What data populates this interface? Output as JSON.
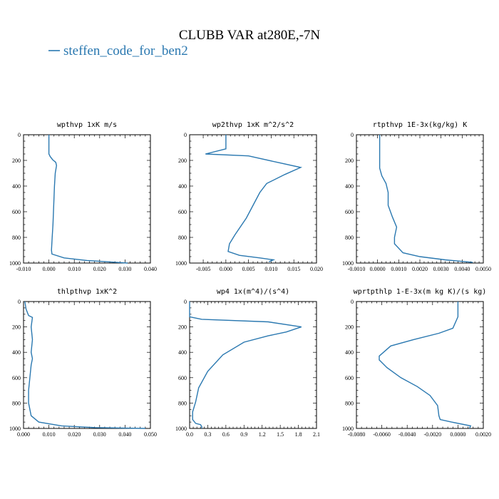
{
  "figure": {
    "title": "CLUBB VAR at280E,-7N",
    "legend_label": "steffen_code_for_ben2",
    "line_color": "#2a78b0"
  },
  "chart_data": [
    {
      "type": "line",
      "title": "wpthvp   1xK m/s",
      "xlim": [
        -0.01,
        0.04
      ],
      "ylim": [
        1000,
        0
      ],
      "y_inverted": true,
      "xticks": [
        "-0.010",
        "0.000",
        "0.010",
        "0.020",
        "0.030",
        "0.040"
      ],
      "yticks": [
        "0",
        "200",
        "400",
        "600",
        "800",
        "1000"
      ],
      "series": [
        {
          "x": [
            0.0,
            0.0,
            0.0,
            0.0005,
            0.0015,
            0.0027,
            0.003,
            0.0025,
            0.0022,
            0.002,
            0.0018,
            0.0016,
            0.0013,
            0.001,
            0.0012,
            0.006,
            0.015,
            0.025,
            0.031
          ],
          "y": [
            0,
            100,
            150,
            170,
            195,
            215,
            240,
            300,
            400,
            500,
            600,
            700,
            800,
            900,
            930,
            960,
            980,
            993,
            1000
          ]
        }
      ]
    },
    {
      "type": "line",
      "title": "wp2thvp   1xK m^2/s^2",
      "xlim": [
        -0.008,
        0.02
      ],
      "ylim": [
        1000,
        0
      ],
      "y_inverted": true,
      "xticks": [
        "-0.005",
        "0.000",
        "0.005",
        "0.010",
        "0.015",
        "0.020"
      ],
      "yticks": [
        "0",
        "200",
        "400",
        "600",
        "800",
        "1000"
      ],
      "series": [
        {
          "x": [
            0.0,
            0.0,
            -0.0045,
            0.005,
            0.012,
            0.0165,
            0.013,
            0.009,
            0.0075,
            0.006,
            0.0045,
            0.002,
            0.0008,
            0.0005,
            0.003,
            0.0075,
            0.0105,
            0.0095
          ],
          "y": [
            0,
            110,
            150,
            165,
            220,
            255,
            310,
            380,
            450,
            550,
            650,
            780,
            850,
            910,
            940,
            960,
            975,
            990
          ]
        }
      ]
    },
    {
      "type": "line",
      "title": "rtpthvp   1E-3x(kg/kg) K",
      "xlim": [
        -0.001,
        0.005
      ],
      "ylim": [
        1000,
        0
      ],
      "y_inverted": true,
      "xticks": [
        "-0.0010",
        "0.0000",
        "0.0010",
        "0.0020",
        "0.0030",
        "0.0040",
        "0.0050"
      ],
      "yticks": [
        "0",
        "200",
        "400",
        "600",
        "800",
        "1000"
      ],
      "series": [
        {
          "x": [
            0.0001,
            0.0001,
            0.0001,
            0.0001,
            0.0002,
            0.0004,
            0.0005,
            0.0005,
            0.0007,
            0.0009,
            0.0008,
            0.0008,
            0.0012,
            0.002,
            0.0032,
            0.0045
          ],
          "y": [
            0,
            100,
            200,
            260,
            320,
            380,
            450,
            550,
            640,
            720,
            800,
            850,
            920,
            950,
            975,
            995
          ]
        }
      ]
    },
    {
      "type": "line",
      "title": "thlpthvp   1xK^2",
      "xlim": [
        0,
        0.05
      ],
      "ylim": [
        1000,
        0
      ],
      "y_inverted": true,
      "xticks": [
        "0.000",
        "0.010",
        "0.020",
        "0.030",
        "0.040",
        "0.050"
      ],
      "yticks": [
        "0",
        "200",
        "400",
        "600",
        "800",
        "1000"
      ],
      "series": [
        {
          "x": [
            0.0005,
            0.001,
            0.002,
            0.0035,
            0.003,
            0.0035,
            0.003,
            0.0035,
            0.003,
            0.0025,
            0.002,
            0.002,
            0.003,
            0.006,
            0.015,
            0.028,
            0.048
          ],
          "y": [
            0,
            60,
            110,
            125,
            200,
            300,
            400,
            450,
            500,
            600,
            700,
            800,
            900,
            950,
            980,
            993,
            1000
          ]
        }
      ]
    },
    {
      "type": "line",
      "title": "wp4   1x(m^4)/(s^4)",
      "xlim": [
        0,
        2.1
      ],
      "ylim": [
        1000,
        0
      ],
      "y_inverted": true,
      "xticks": [
        "0.0",
        "0.3",
        "0.6",
        "0.9",
        "1.2",
        "1.5",
        "1.8",
        "2.1"
      ],
      "yticks": [
        "0",
        "200",
        "400",
        "600",
        "800",
        "1000"
      ],
      "series": [
        {
          "x": [
            0.0,
            0.0,
            0.2,
            1.3,
            1.85,
            1.6,
            1.3,
            0.9,
            0.55,
            0.3,
            0.15,
            0.1,
            0.05,
            0.05,
            0.1,
            0.18,
            0.2,
            0.2
          ],
          "y": [
            0,
            120,
            140,
            160,
            200,
            240,
            270,
            320,
            420,
            550,
            680,
            790,
            870,
            930,
            960,
            970,
            985,
            1000
          ]
        }
      ]
    },
    {
      "type": "line",
      "title": "wprtpthlp   1-E-3x(m kg K)/(s kg)",
      "xlim": [
        -0.008,
        0.002
      ],
      "ylim": [
        1000,
        0
      ],
      "y_inverted": true,
      "xticks": [
        "-0.0080",
        "-0.0060",
        "-0.0040",
        "-0.0020",
        "0.0000",
        "0.0020"
      ],
      "yticks": [
        "0",
        "200",
        "400",
        "600",
        "800",
        "1000"
      ],
      "series": [
        {
          "x": [
            0.0,
            0.0,
            -0.0004,
            -0.0015,
            -0.0035,
            -0.0053,
            -0.0062,
            -0.0062,
            -0.0056,
            -0.0045,
            -0.0032,
            -0.0022,
            -0.0016,
            -0.0015,
            -0.0014,
            -0.0005,
            0.001,
            0.0009
          ],
          "y": [
            0,
            120,
            210,
            250,
            300,
            350,
            430,
            460,
            520,
            600,
            670,
            740,
            820,
            900,
            930,
            950,
            980,
            1000
          ]
        }
      ]
    }
  ]
}
